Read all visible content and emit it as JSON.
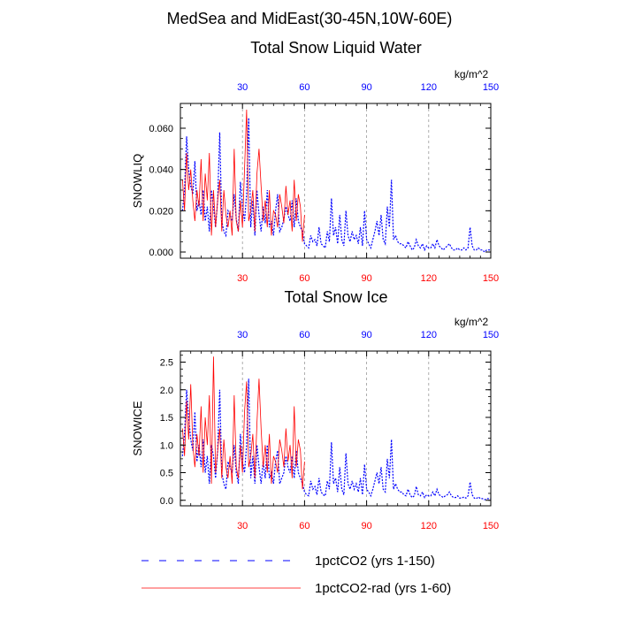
{
  "page": {
    "suptitle": "MedSea and MidEast(30-45N,10W-60E)"
  },
  "colors": {
    "series1": "#0000ff",
    "series2": "#ff0000",
    "axis": "#000000",
    "grid": "#999999",
    "top_ticks": "#0000ff",
    "bottom_ticks": "#ff0000"
  },
  "legend": {
    "items": [
      {
        "label": "1pctCO2 (yrs 1-150)",
        "color": "#0000ff",
        "style": "dashed"
      },
      {
        "label": "1pctCO2-rad (yrs 1-60)",
        "color": "#ff0000",
        "style": "solid"
      }
    ]
  },
  "chart_data": [
    {
      "type": "line",
      "title": "Total Snow Liquid Water",
      "ylabel": "SNOWLIQ",
      "units": "kg/m^2",
      "xlim": [
        0,
        150
      ],
      "ylim": [
        -0.003,
        0.072
      ],
      "xticks": [
        30,
        60,
        90,
        120,
        150
      ],
      "yticks": [
        0.0,
        0.02,
        0.04,
        0.06
      ],
      "ytick_labels": [
        "0.000",
        "0.020",
        "0.040",
        "0.060"
      ],
      "grid_x": [
        30,
        60,
        90,
        120
      ],
      "series": [
        {
          "name": "1pctCO2 (yrs 1-150)",
          "style": "dashed",
          "color": "#0000ff",
          "x_start": 1,
          "values": [
            0.02,
            0.03,
            0.056,
            0.04,
            0.032,
            0.028,
            0.044,
            0.02,
            0.025,
            0.018,
            0.03,
            0.015,
            0.022,
            0.01,
            0.03,
            0.022,
            0.012,
            0.025,
            0.058,
            0.015,
            0.01,
            0.008,
            0.02,
            0.018,
            0.015,
            0.028,
            0.016,
            0.01,
            0.034,
            0.022,
            0.015,
            0.028,
            0.065,
            0.012,
            0.025,
            0.008,
            0.03,
            0.018,
            0.01,
            0.022,
            0.014,
            0.03,
            0.012,
            0.015,
            0.008,
            0.02,
            0.028,
            0.01,
            0.012,
            0.016,
            0.022,
            0.018,
            0.015,
            0.025,
            0.012,
            0.026,
            0.015,
            0.012,
            0.01,
            0.004,
            0.003,
            0.002,
            0.008,
            0.005,
            0.006,
            0.003,
            0.012,
            0.004,
            0.003,
            0.002,
            0.01,
            0.005,
            0.026,
            0.008,
            0.012,
            0.004,
            0.018,
            0.006,
            0.003,
            0.02,
            0.008,
            0.005,
            0.01,
            0.006,
            0.008,
            0.004,
            0.012,
            0.003,
            0.02,
            0.006,
            0.004,
            0.002,
            0.006,
            0.01,
            0.015,
            0.008,
            0.018,
            0.006,
            0.004,
            0.022,
            0.012,
            0.035,
            0.006,
            0.008,
            0.005,
            0.004,
            0.004,
            0.003,
            0.002,
            0.005,
            0.003,
            0.001,
            0.002,
            0.006,
            0.003,
            0.002,
            0.004,
            0.001,
            0.003,
            0.002,
            0.002,
            0.004,
            0.002,
            0.006,
            0.003,
            0.002,
            0.001,
            0.002,
            0.003,
            0.004,
            0.002,
            0.001,
            0.001,
            0.002,
            0.001,
            0.001,
            0.002,
            0.001,
            0.002,
            0.012,
            0.003,
            0.001,
            0.001,
            0.002,
            0.001,
            0.001,
            0.0,
            0.001,
            0.001,
            0.001
          ]
        },
        {
          "name": "1pctCO2-rad (yrs 1-60)",
          "style": "solid",
          "color": "#ff0000",
          "x_start": 1,
          "values": [
            0.035,
            0.02,
            0.048,
            0.03,
            0.04,
            0.025,
            0.015,
            0.03,
            0.022,
            0.045,
            0.015,
            0.038,
            0.025,
            0.048,
            0.008,
            0.03,
            0.012,
            0.025,
            0.035,
            0.01,
            0.03,
            0.018,
            0.012,
            0.02,
            0.008,
            0.05,
            0.015,
            0.01,
            0.025,
            0.012,
            0.04,
            0.069,
            0.015,
            0.02,
            0.03,
            0.01,
            0.038,
            0.05,
            0.032,
            0.015,
            0.025,
            0.012,
            0.03,
            0.008,
            0.02,
            0.018,
            0.012,
            0.028,
            0.022,
            0.014,
            0.032,
            0.018,
            0.025,
            0.01,
            0.035,
            0.015,
            0.028,
            0.022,
            0.005,
            0.018
          ]
        }
      ]
    },
    {
      "type": "line",
      "title": "Total Snow Ice",
      "ylabel": "SNOWICE",
      "units": "kg/m^2",
      "xlim": [
        0,
        150
      ],
      "ylim": [
        -0.1,
        2.7
      ],
      "xticks": [
        30,
        60,
        90,
        120,
        150
      ],
      "yticks": [
        0.0,
        0.5,
        1.0,
        1.5,
        2.0,
        2.5
      ],
      "ytick_labels": [
        "0.0",
        "0.5",
        "1.0",
        "1.5",
        "2.0",
        "2.5"
      ],
      "grid_x": [
        30,
        60,
        90,
        120
      ],
      "series": [
        {
          "name": "1pctCO2 (yrs 1-150)",
          "style": "dashed",
          "color": "#0000ff",
          "x_start": 1,
          "values": [
            0.8,
            1.2,
            2.0,
            1.5,
            1.1,
            0.9,
            1.6,
            0.7,
            1.0,
            0.6,
            1.1,
            0.5,
            0.8,
            0.3,
            1.0,
            0.8,
            0.4,
            0.9,
            2.0,
            0.5,
            0.3,
            0.2,
            0.7,
            0.6,
            0.5,
            1.0,
            0.5,
            0.3,
            1.2,
            0.7,
            0.5,
            1.0,
            2.2,
            0.4,
            0.8,
            0.3,
            1.0,
            0.6,
            0.3,
            0.7,
            0.4,
            1.0,
            0.4,
            0.5,
            0.3,
            0.7,
            0.9,
            0.3,
            0.4,
            0.5,
            0.8,
            0.6,
            0.5,
            0.8,
            0.4,
            0.9,
            0.5,
            0.4,
            0.3,
            0.15,
            0.1,
            0.08,
            0.35,
            0.2,
            0.25,
            0.1,
            0.4,
            0.15,
            0.1,
            0.08,
            0.35,
            0.2,
            1.05,
            0.3,
            0.4,
            0.15,
            0.6,
            0.2,
            0.1,
            0.85,
            0.3,
            0.2,
            0.35,
            0.2,
            0.3,
            0.15,
            0.4,
            0.1,
            0.65,
            0.2,
            0.15,
            0.08,
            0.2,
            0.35,
            0.5,
            0.3,
            0.6,
            0.2,
            0.15,
            0.75,
            0.4,
            1.1,
            0.2,
            0.3,
            0.2,
            0.15,
            0.15,
            0.1,
            0.08,
            0.2,
            0.1,
            0.05,
            0.08,
            0.25,
            0.1,
            0.08,
            0.15,
            0.05,
            0.1,
            0.08,
            0.08,
            0.15,
            0.08,
            0.2,
            0.1,
            0.08,
            0.05,
            0.08,
            0.1,
            0.15,
            0.08,
            0.05,
            0.05,
            0.08,
            0.04,
            0.04,
            0.06,
            0.04,
            0.08,
            0.33,
            0.1,
            0.04,
            0.03,
            0.06,
            0.03,
            0.03,
            0.01,
            0.03,
            0.03,
            0.03
          ]
        },
        {
          "name": "1pctCO2-rad (yrs 1-60)",
          "style": "solid",
          "color": "#ff0000",
          "x_start": 1,
          "values": [
            1.3,
            0.8,
            1.8,
            1.1,
            2.1,
            1.0,
            0.6,
            1.2,
            0.8,
            1.7,
            0.5,
            1.5,
            1.0,
            1.9,
            0.3,
            2.6,
            0.5,
            0.9,
            1.3,
            0.4,
            1.1,
            0.6,
            0.4,
            0.8,
            0.3,
            1.9,
            0.6,
            0.4,
            1.0,
            0.5,
            1.6,
            2.15,
            0.6,
            0.8,
            1.2,
            0.4,
            1.4,
            2.2,
            1.3,
            0.6,
            1.0,
            0.5,
            1.2,
            0.3,
            0.8,
            0.7,
            0.5,
            1.1,
            0.9,
            0.6,
            1.3,
            0.7,
            1.0,
            0.4,
            1.7,
            0.6,
            1.1,
            0.9,
            0.2,
            0.7
          ]
        }
      ]
    }
  ]
}
